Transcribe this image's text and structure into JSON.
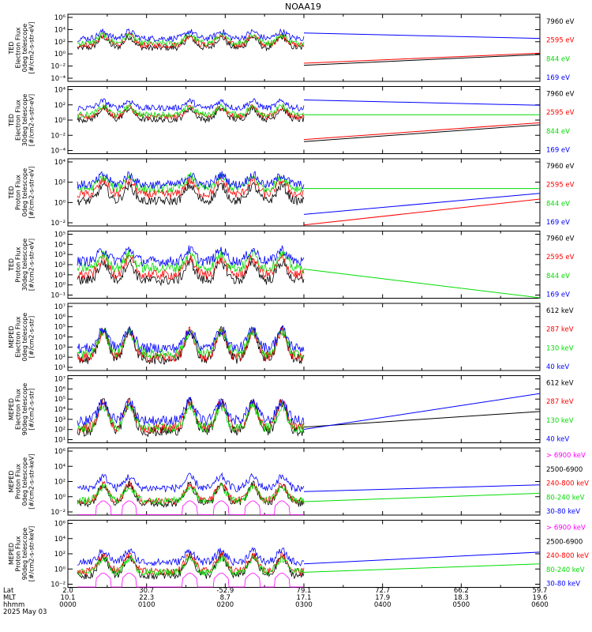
{
  "title": "NOAA19",
  "colors": {
    "blue": "#0000ff",
    "red": "#ff0000",
    "green": "#00dd00",
    "black": "#000000",
    "magenta": "#ff00ff"
  },
  "footer": {
    "row_labels": [
      "Lat",
      "MLT",
      "hhmm"
    ],
    "date": "2025 May 03",
    "ticks": [
      {
        "lat": "2.0",
        "mlt": "10.1",
        "time": "0000"
      },
      {
        "lat": "30.7",
        "mlt": "22.3",
        "time": "0100"
      },
      {
        "lat": "-52.9",
        "mlt": "8.7",
        "time": "0200"
      },
      {
        "lat": "79.1",
        "mlt": "17.1",
        "time": "0300"
      },
      {
        "lat": "72.7",
        "mlt": "17.9",
        "time": "0400"
      },
      {
        "lat": "66.2",
        "mlt": "18.3",
        "time": "0500"
      },
      {
        "lat": "59.7",
        "mlt": "19.6",
        "time": "0600"
      }
    ]
  },
  "chart_data": [
    {
      "type": "line",
      "ylabel": [
        "TED",
        "Electron Flux",
        "0deg telescope",
        "[#/cm2-s-str-eV]"
      ],
      "y_scale": "log",
      "ylim_exp": [
        -4,
        6
      ],
      "tick_labels": [
        "10⁶",
        "10⁴",
        "10²",
        "10⁰",
        "10⁻²",
        "10⁻⁴"
      ],
      "xlim_hours": [
        0,
        6
      ],
      "series": [
        {
          "name": "7960 eV",
          "color": "black",
          "base": 1.0,
          "tail": [
            -1.6,
            0.0
          ]
        },
        {
          "name": "2595 eV",
          "color": "red",
          "base": 1.4,
          "tail": [
            -1.3,
            0.2
          ]
        },
        {
          "name": "844 eV",
          "color": "green",
          "base": 1.7,
          "tail": null
        },
        {
          "name": "169 eV",
          "color": "blue",
          "base": 2.4,
          "tail": [
            3.2,
            2.4
          ]
        }
      ]
    },
    {
      "type": "line",
      "ylabel": [
        "TED",
        "Electron Flux",
        "30deg telescope",
        "[#/cm2-s-str-eV]"
      ],
      "y_scale": "log",
      "ylim_exp": [
        -4,
        6
      ],
      "tick_labels": [
        "10⁴",
        "10²",
        "10⁰",
        "10⁻²",
        "10⁻⁴"
      ],
      "xlim_hours": [
        0,
        6
      ],
      "series": [
        {
          "name": "7960 eV",
          "color": "black",
          "base": 1.1,
          "tail": [
            -2.2,
            0.3
          ]
        },
        {
          "name": "2595 eV",
          "color": "red",
          "base": 1.5,
          "tail": [
            -1.9,
            0.6
          ]
        },
        {
          "name": "844 eV",
          "color": "green",
          "base": 1.8,
          "tail": [
            1.8,
            1.8
          ]
        },
        {
          "name": "169 eV",
          "color": "blue",
          "base": 2.8,
          "tail": [
            4.0,
            3.2
          ]
        }
      ]
    },
    {
      "type": "line",
      "ylabel": [
        "TED",
        "Proton Flux",
        "0deg telescope",
        "[#/cm2-s-str-eV]"
      ],
      "y_scale": "log",
      "ylim_exp": [
        -2,
        5
      ],
      "tick_labels": [
        "10⁴",
        "10²",
        "10⁰",
        "10⁻²"
      ],
      "xlim_hours": [
        0,
        6
      ],
      "series": [
        {
          "name": "7960 eV",
          "color": "black",
          "base": 0.6,
          "tail": null
        },
        {
          "name": "2595 eV",
          "color": "red",
          "base": 1.3,
          "tail": [
            -1.9,
            0.8
          ]
        },
        {
          "name": "844 eV",
          "color": "green",
          "base": 1.9,
          "tail": [
            1.9,
            1.9
          ]
        },
        {
          "name": "169 eV",
          "color": "blue",
          "base": 2.3,
          "tail": [
            -0.8,
            1.4
          ]
        }
      ]
    },
    {
      "type": "line",
      "ylabel": [
        "TED",
        "Proton Flux",
        "30deg telescope",
        "[#/cm2-s-str-eV]"
      ],
      "y_scale": "log",
      "ylim_exp": [
        -1,
        5
      ],
      "tick_labels": [
        "10⁵",
        "10⁴",
        "10³",
        "10²",
        "10¹",
        "10⁰",
        "10⁻¹"
      ],
      "xlim_hours": [
        0,
        6
      ],
      "series": [
        {
          "name": "7960 eV",
          "color": "black",
          "base": 0.6,
          "tail": null
        },
        {
          "name": "2595 eV",
          "color": "red",
          "base": 1.1,
          "tail": null
        },
        {
          "name": "844 eV",
          "color": "green",
          "base": 1.7,
          "tail": [
            1.6,
            -1.0
          ]
        },
        {
          "name": "169 eV",
          "color": "blue",
          "base": 2.3,
          "tail": null
        }
      ]
    },
    {
      "type": "line",
      "ylabel": [
        "MEPED",
        "Electron Flux",
        "0deg telescope",
        "[#/cm2-s-str]"
      ],
      "y_scale": "log",
      "ylim_exp": [
        1,
        7
      ],
      "tick_labels": [
        "10⁷",
        "10⁶",
        "10⁵",
        "10⁴",
        "10³",
        "10²",
        "10¹"
      ],
      "xlim_hours": [
        0,
        6
      ],
      "series": [
        {
          "name": "612 keV",
          "color": "black",
          "base": 2.0,
          "tail": null
        },
        {
          "name": "287 keV",
          "color": "red",
          "base": 2.2,
          "tail": null
        },
        {
          "name": "130 keV",
          "color": "green",
          "base": 2.5,
          "tail": null
        },
        {
          "name": "40 keV",
          "color": "blue",
          "base": 3.0,
          "tail": null
        }
      ]
    },
    {
      "type": "line",
      "ylabel": [
        "MEPED",
        "Electron Flux",
        "90deg telescope",
        "[#/cm2-s-str]"
      ],
      "y_scale": "log",
      "ylim_exp": [
        1,
        7
      ],
      "tick_labels": [
        "10⁷",
        "10⁶",
        "10⁵",
        "10⁴",
        "10³",
        "10²",
        "10¹"
      ],
      "xlim_hours": [
        0,
        6
      ],
      "series": [
        {
          "name": "612 keV",
          "color": "black",
          "base": 2.0,
          "tail": [
            2.4,
            3.8
          ]
        },
        {
          "name": "287 keV",
          "color": "red",
          "base": 2.3,
          "tail": null
        },
        {
          "name": "130 keV",
          "color": "green",
          "base": 2.3,
          "tail": null
        },
        {
          "name": "40 keV",
          "color": "blue",
          "base": 3.0,
          "tail": [
            2.2,
            5.4
          ]
        }
      ]
    },
    {
      "type": "line",
      "ylabel": [
        "MEPED",
        "Proton Flux",
        "0deg telescope",
        "[#/cm2-s-str-keV]"
      ],
      "y_scale": "log",
      "ylim_exp": [
        -2,
        6
      ],
      "tick_labels": [
        "10⁶",
        "10⁴",
        "10²",
        "10⁰",
        "10⁻²"
      ],
      "xlim_hours": [
        0,
        6
      ],
      "series": [
        {
          "name": "> 6900 keV",
          "color": "magenta",
          "base": -1.3,
          "tail": null
        },
        {
          "name": "2500-6900",
          "color": "black",
          "base": -0.6,
          "tail": null
        },
        {
          "name": "240-800 keV",
          "color": "red",
          "base": -0.3,
          "tail": null
        },
        {
          "name": "80-240 keV",
          "color": "green",
          "base": -0.3,
          "tail": [
            -0.4,
            0.6
          ]
        },
        {
          "name": "30-80 keV",
          "color": "blue",
          "base": 1.2,
          "tail": [
            0.8,
            1.6
          ]
        }
      ]
    },
    {
      "type": "line",
      "ylabel": [
        "MEPED",
        "Proton Flux",
        "90deg telescope",
        "[#/cm2-s-str-keV]"
      ],
      "y_scale": "log",
      "ylim_exp": [
        -2,
        6
      ],
      "tick_labels": [
        "10⁶",
        "10⁴",
        "10²",
        "10⁰",
        "10⁻²"
      ],
      "xlim_hours": [
        0,
        6
      ],
      "series": [
        {
          "name": "> 6900 keV",
          "color": "magenta",
          "base": -1.3,
          "tail": null
        },
        {
          "name": "2500-6900",
          "color": "black",
          "base": -0.6,
          "tail": null
        },
        {
          "name": "240-800 keV",
          "color": "red",
          "base": -0.1,
          "tail": null
        },
        {
          "name": "80-240 keV",
          "color": "green",
          "base": -0.2,
          "tail": [
            -0.2,
            0.8
          ]
        },
        {
          "name": "30-80 keV",
          "color": "blue",
          "base": 1.0,
          "tail": [
            0.8,
            2.2
          ]
        }
      ]
    }
  ]
}
